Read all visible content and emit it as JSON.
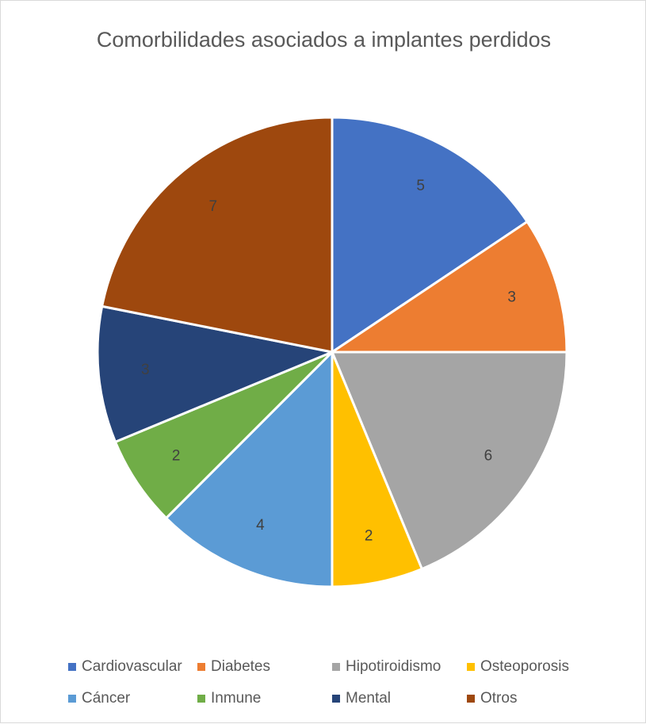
{
  "chart_data": {
    "type": "pie",
    "title": "Comorbilidades asociados a implantes perdidos",
    "categories": [
      "Cardiovascular",
      "Diabetes",
      "Hipotiroidismo",
      "Osteoporosis",
      "Cáncer",
      "Inmune",
      "Mental",
      "Otros"
    ],
    "values": [
      5,
      3,
      6,
      2,
      4,
      2,
      3,
      7
    ],
    "data_labels": [
      "5",
      "3",
      "6",
      "2",
      "4",
      "2",
      "3",
      "7"
    ],
    "colors": [
      "#4472C4",
      "#ED7D31",
      "#A5A5A5",
      "#FFC000",
      "#5B9BD5",
      "#70AD47",
      "#264478",
      "#9E480E"
    ],
    "legend_position": "bottom"
  }
}
